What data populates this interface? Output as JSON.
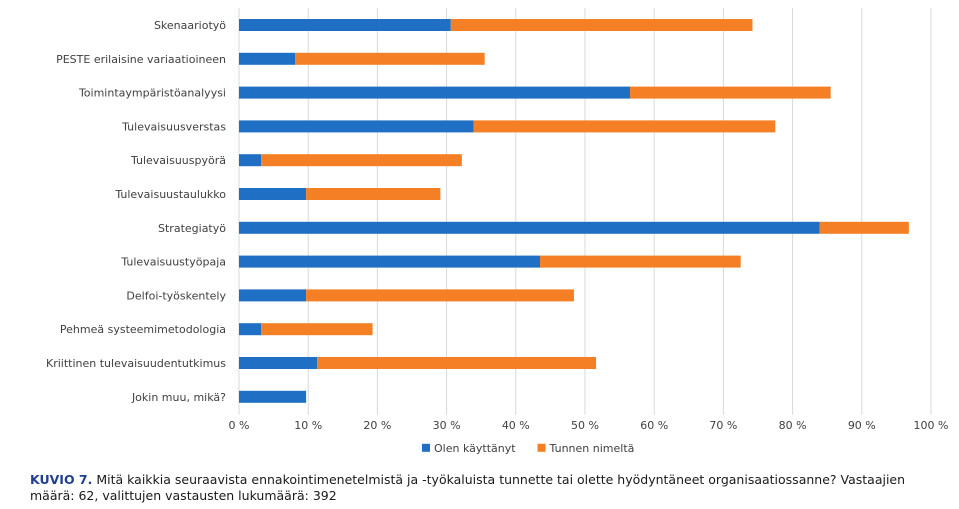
{
  "chart_data": {
    "type": "bar",
    "orientation": "horizontal",
    "stacked": true,
    "title": "",
    "xlabel": "",
    "ylabel": "",
    "xlim": [
      0,
      100
    ],
    "ticks": [
      "0 %",
      "10 %",
      "20 %",
      "30 %",
      "40 %",
      "50 %",
      "60 %",
      "70 %",
      "80 %",
      "90 %",
      "100 %"
    ],
    "tick_values": [
      0,
      10,
      20,
      30,
      40,
      50,
      60,
      70,
      80,
      90,
      100
    ],
    "grid": true,
    "legend_position": "bottom-center",
    "categories": [
      "Skenaariotyö",
      "PESTE erilaisine variaatioineen",
      "Toimintaympäristöanalyysi",
      "Tulevaisuusverstas",
      "Tulevaisuuspyörä",
      "Tulevaisuustaulukko",
      "Strategiatyö",
      "Tulevaisuustyöpaja",
      "Delfoi-työskentely",
      "Pehmeä systeemimetodologia",
      "Kriittinen tulevaisuudentutkimus",
      "Jokin muu, mikä?"
    ],
    "series": [
      {
        "name": "Olen käyttänyt",
        "color": "#1f6fc5",
        "values": [
          30.6,
          8.1,
          56.5,
          33.9,
          3.2,
          9.7,
          83.9,
          43.5,
          9.7,
          3.2,
          11.3,
          9.7
        ]
      },
      {
        "name": "Tunnen nimeltä",
        "color": "#f47f24",
        "values": [
          43.6,
          27.4,
          29.0,
          43.6,
          29.0,
          19.4,
          12.9,
          29.0,
          38.7,
          16.1,
          40.3,
          0
        ]
      }
    ]
  },
  "caption": {
    "figure_number": "KUVIO 7.",
    "text": "Mitä kaikkia seuraavista ennakointimenetelmistä ja -työkaluista tunnette tai olette hyödyntäneet organisaatiossanne? Vastaajien määrä: 62, valittujen vastausten lukumäärä: 392"
  }
}
